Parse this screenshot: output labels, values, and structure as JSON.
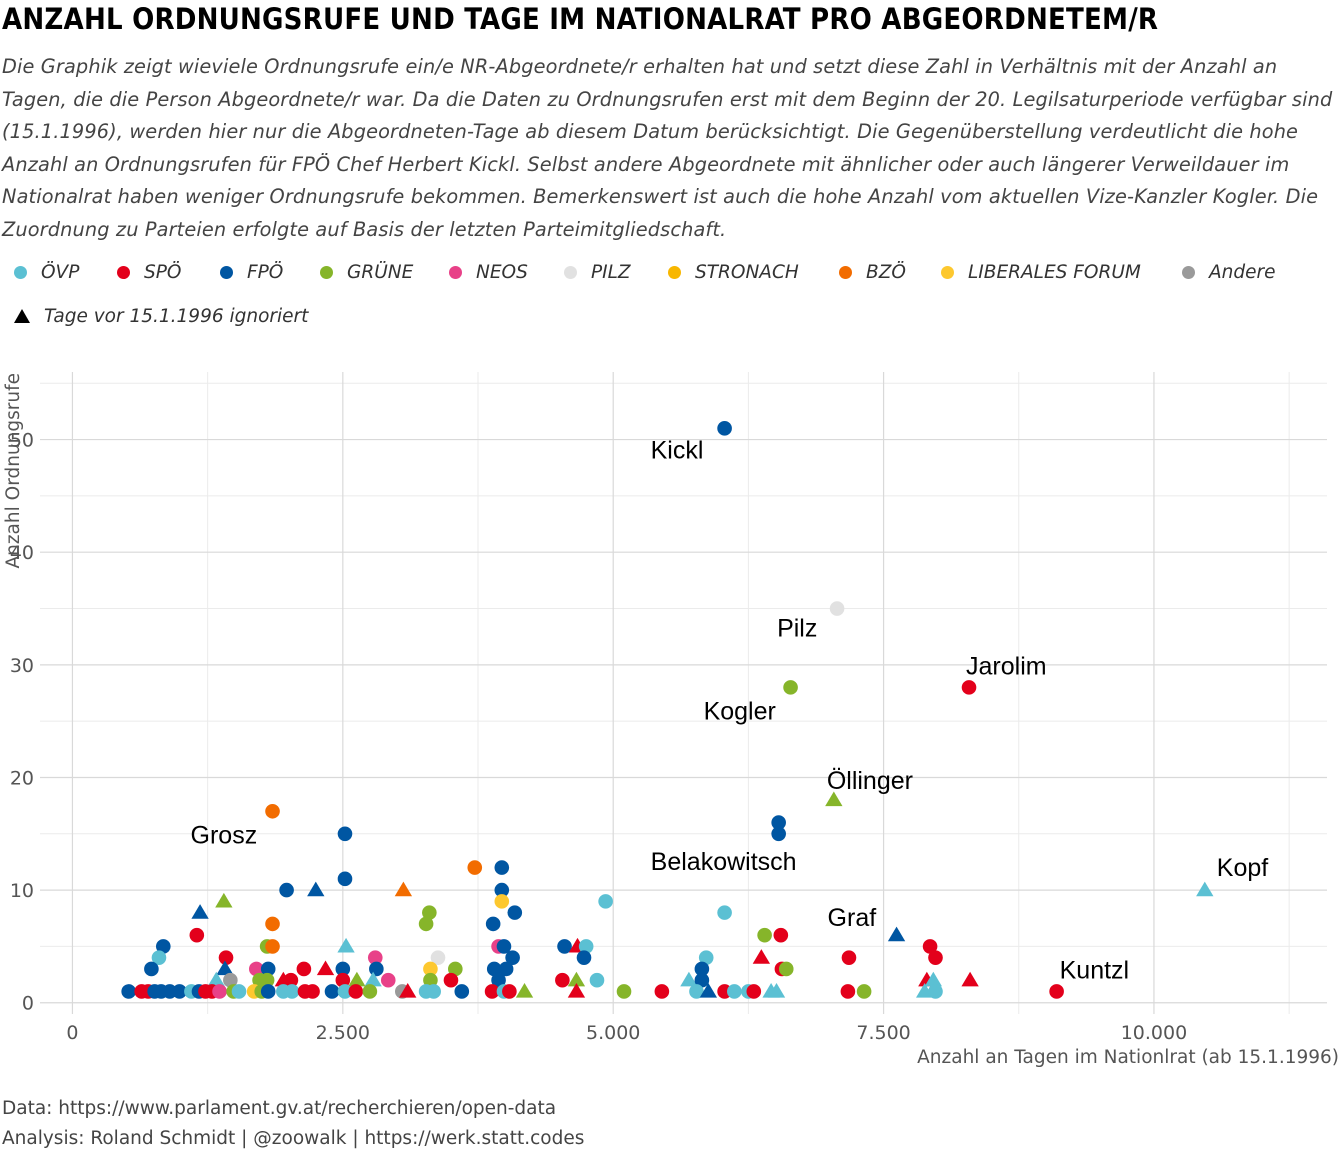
{
  "title": "ANZAHL ORDNUNGSRUFE UND TAGE IM NATIONALRAT PRO ABGEORDNETEM/R",
  "subtitle": "Die Graphik zeigt wieviele Ordnungsrufe ein/e NR-Abgeordnete/r erhalten hat und setzt diese Zahl in Verhältnis mit der Anzahl an Tagen, die die Person Abgeordnete/r war. Da die Daten zu Ordnungsrufen erst mit dem Beginn der 20. Legilsaturperiode verfügbar sind (15.1.1996), werden hier nur die Abgeordneten-Tage ab diesem Datum berücksichtigt. Die Gegenüberstellung verdeutlicht die hohe Anzahl an Ordnungsrufen für FPÖ Chef Herbert Kickl. Selbst andere Abgeordnete mit ähnlicher oder auch längerer Verweildauer im Nationalrat haben weniger Ordnungsrufe bekommen. Bemerkenswert ist auch die hohe Anzahl vom aktuellen Vize-Kanzler Kogler. Die Zuordnung zu Parteien erfolgte auf Basis der letzten Parteimitgliedschaft.",
  "caption": {
    "line1": "Data: https://www.parlament.gv.at/recherchieren/open-data",
    "line2": "Analysis: Roland Schmidt | @zoowalk | https://werk.statt.codes"
  },
  "legend": {
    "parties": [
      {
        "name": "ÖVP",
        "color": "#5bc0d3"
      },
      {
        "name": "SPÖ",
        "color": "#e3001b"
      },
      {
        "name": "FPÖ",
        "color": "#0056a2"
      },
      {
        "name": "GRÜNE",
        "color": "#86b52a"
      },
      {
        "name": "NEOS",
        "color": "#e84188"
      },
      {
        "name": "PILZ",
        "color": "#e1e1e1"
      },
      {
        "name": "STRONACH",
        "color": "#f8b700"
      },
      {
        "name": "BZÖ",
        "color": "#f26c00"
      },
      {
        "name": "LIBERALES FORUM",
        "color": "#fdc82f"
      },
      {
        "name": "Andere",
        "color": "#9a9a9a"
      }
    ],
    "triangle_label": "Tage vor 15.1.1996 ignoriert"
  },
  "chart_data": {
    "type": "scatter",
    "xlabel": "Anzahl an Tagen im Nationlrat (ab 15.1.1996)",
    "ylabel": "Anzahl Ordnungsrufe",
    "xlim": [
      -300,
      11600
    ],
    "ylim": [
      -1,
      56
    ],
    "x_ticks": [
      0,
      2500,
      5000,
      7500,
      10000
    ],
    "x_tick_labels": [
      "0",
      "2.500",
      "5.000",
      "7.500",
      "10.000"
    ],
    "y_ticks": [
      0,
      10,
      20,
      30,
      40,
      50
    ],
    "y_tick_labels": [
      "0",
      "10",
      "20",
      "30",
      "40",
      "50"
    ],
    "grid": true,
    "encoding": {
      "color": "party",
      "shape": "triangle = Tage vor 15.1.1996 ignoriert"
    },
    "points": [
      {
        "x": 6030,
        "y": 51,
        "party": "FPÖ",
        "tri": false
      },
      {
        "x": 7070,
        "y": 35,
        "party": "PILZ",
        "tri": false
      },
      {
        "x": 8290,
        "y": 28,
        "party": "SPÖ",
        "tri": false
      },
      {
        "x": 6640,
        "y": 28,
        "party": "GRÜNE",
        "tri": false
      },
      {
        "x": 7040,
        "y": 18,
        "party": "GRÜNE",
        "tri": true
      },
      {
        "x": 6530,
        "y": 16,
        "party": "FPÖ",
        "tri": false
      },
      {
        "x": 6530,
        "y": 15,
        "party": "FPÖ",
        "tri": false
      },
      {
        "x": 10470,
        "y": 10,
        "party": "ÖVP",
        "tri": true
      },
      {
        "x": 7620,
        "y": 6,
        "party": "FPÖ",
        "tri": true
      },
      {
        "x": 9100,
        "y": 1,
        "party": "SPÖ",
        "tri": false
      },
      {
        "x": 1850,
        "y": 17,
        "party": "BZÖ",
        "tri": false
      },
      {
        "x": 2520,
        "y": 15,
        "party": "FPÖ",
        "tri": false
      },
      {
        "x": 2520,
        "y": 11,
        "party": "FPÖ",
        "tri": false
      },
      {
        "x": 3970,
        "y": 12,
        "party": "FPÖ",
        "tri": false
      },
      {
        "x": 3720,
        "y": 12,
        "party": "BZÖ",
        "tri": false
      },
      {
        "x": 1980,
        "y": 10,
        "party": "FPÖ",
        "tri": false
      },
      {
        "x": 2250,
        "y": 10,
        "party": "FPÖ",
        "tri": true
      },
      {
        "x": 3060,
        "y": 10,
        "party": "BZÖ",
        "tri": true
      },
      {
        "x": 3970,
        "y": 10,
        "party": "FPÖ",
        "tri": false
      },
      {
        "x": 3970,
        "y": 9,
        "party": "LIBERALES FORUM",
        "tri": false
      },
      {
        "x": 1400,
        "y": 9,
        "party": "GRÜNE",
        "tri": true
      },
      {
        "x": 4930,
        "y": 9,
        "party": "ÖVP",
        "tri": false
      },
      {
        "x": 1180,
        "y": 8,
        "party": "FPÖ",
        "tri": true
      },
      {
        "x": 3300,
        "y": 8,
        "party": "GRÜNE",
        "tri": false
      },
      {
        "x": 4090,
        "y": 8,
        "party": "FPÖ",
        "tri": false
      },
      {
        "x": 6030,
        "y": 8,
        "party": "ÖVP",
        "tri": false
      },
      {
        "x": 1850,
        "y": 7,
        "party": "BZÖ",
        "tri": false
      },
      {
        "x": 3270,
        "y": 7,
        "party": "GRÜNE",
        "tri": false
      },
      {
        "x": 3890,
        "y": 7,
        "party": "FPÖ",
        "tri": false
      },
      {
        "x": 1150,
        "y": 6,
        "party": "SPÖ",
        "tri": false
      },
      {
        "x": 6400,
        "y": 6,
        "party": "GRÜNE",
        "tri": false
      },
      {
        "x": 6550,
        "y": 6,
        "party": "SPÖ",
        "tri": false
      },
      {
        "x": 840,
        "y": 5,
        "party": "FPÖ",
        "tri": false
      },
      {
        "x": 1800,
        "y": 5,
        "party": "GRÜNE",
        "tri": false
      },
      {
        "x": 1850,
        "y": 5,
        "party": "BZÖ",
        "tri": false
      },
      {
        "x": 2530,
        "y": 5,
        "party": "ÖVP",
        "tri": true
      },
      {
        "x": 3940,
        "y": 5,
        "party": "NEOS",
        "tri": false
      },
      {
        "x": 3990,
        "y": 5,
        "party": "FPÖ",
        "tri": false
      },
      {
        "x": 4550,
        "y": 5,
        "party": "FPÖ",
        "tri": false
      },
      {
        "x": 4670,
        "y": 5,
        "party": "SPÖ",
        "tri": true
      },
      {
        "x": 4750,
        "y": 5,
        "party": "ÖVP",
        "tri": false
      },
      {
        "x": 7930,
        "y": 5,
        "party": "SPÖ",
        "tri": false
      },
      {
        "x": 800,
        "y": 4,
        "party": "ÖVP",
        "tri": false
      },
      {
        "x": 1420,
        "y": 4,
        "party": "SPÖ",
        "tri": false
      },
      {
        "x": 2800,
        "y": 4,
        "party": "NEOS",
        "tri": false
      },
      {
        "x": 3380,
        "y": 4,
        "party": "PILZ",
        "tri": false
      },
      {
        "x": 4070,
        "y": 4,
        "party": "FPÖ",
        "tri": false
      },
      {
        "x": 4730,
        "y": 4,
        "party": "FPÖ",
        "tri": false
      },
      {
        "x": 5860,
        "y": 4,
        "party": "ÖVP",
        "tri": false
      },
      {
        "x": 6370,
        "y": 4,
        "party": "SPÖ",
        "tri": true
      },
      {
        "x": 7180,
        "y": 4,
        "party": "SPÖ",
        "tri": false
      },
      {
        "x": 7980,
        "y": 4,
        "party": "SPÖ",
        "tri": false
      },
      {
        "x": 730,
        "y": 3,
        "party": "FPÖ",
        "tri": false
      },
      {
        "x": 1410,
        "y": 3,
        "party": "FPÖ",
        "tri": true
      },
      {
        "x": 1700,
        "y": 3,
        "party": "NEOS",
        "tri": false
      },
      {
        "x": 1810,
        "y": 3,
        "party": "FPÖ",
        "tri": false
      },
      {
        "x": 2140,
        "y": 3,
        "party": "SPÖ",
        "tri": false
      },
      {
        "x": 2340,
        "y": 3,
        "party": "SPÖ",
        "tri": true
      },
      {
        "x": 2500,
        "y": 3,
        "party": "FPÖ",
        "tri": false
      },
      {
        "x": 2810,
        "y": 3,
        "party": "FPÖ",
        "tri": false
      },
      {
        "x": 3310,
        "y": 3,
        "party": "LIBERALES FORUM",
        "tri": false
      },
      {
        "x": 3540,
        "y": 3,
        "party": "GRÜNE",
        "tri": false
      },
      {
        "x": 3900,
        "y": 3,
        "party": "FPÖ",
        "tri": false
      },
      {
        "x": 4010,
        "y": 3,
        "party": "FPÖ",
        "tri": false
      },
      {
        "x": 5820,
        "y": 3,
        "party": "FPÖ",
        "tri": false
      },
      {
        "x": 6560,
        "y": 3,
        "party": "SPÖ",
        "tri": false
      },
      {
        "x": 6600,
        "y": 3,
        "party": "GRÜNE",
        "tri": false
      },
      {
        "x": 1330,
        "y": 2,
        "party": "ÖVP",
        "tri": true
      },
      {
        "x": 1460,
        "y": 2,
        "party": "Andere",
        "tri": false
      },
      {
        "x": 1730,
        "y": 2,
        "party": "GRÜNE",
        "tri": false
      },
      {
        "x": 1800,
        "y": 2,
        "party": "GRÜNE",
        "tri": false
      },
      {
        "x": 1950,
        "y": 2,
        "party": "SPÖ",
        "tri": true
      },
      {
        "x": 2020,
        "y": 2,
        "party": "SPÖ",
        "tri": false
      },
      {
        "x": 2500,
        "y": 2,
        "party": "SPÖ",
        "tri": false
      },
      {
        "x": 2630,
        "y": 2,
        "party": "GRÜNE",
        "tri": true
      },
      {
        "x": 2780,
        "y": 2,
        "party": "ÖVP",
        "tri": true
      },
      {
        "x": 2920,
        "y": 2,
        "party": "NEOS",
        "tri": false
      },
      {
        "x": 3310,
        "y": 2,
        "party": "GRÜNE",
        "tri": false
      },
      {
        "x": 3500,
        "y": 2,
        "party": "SPÖ",
        "tri": false
      },
      {
        "x": 3940,
        "y": 2,
        "party": "FPÖ",
        "tri": false
      },
      {
        "x": 4530,
        "y": 2,
        "party": "SPÖ",
        "tri": false
      },
      {
        "x": 4660,
        "y": 2,
        "party": "GRÜNE",
        "tri": true
      },
      {
        "x": 4850,
        "y": 2,
        "party": "ÖVP",
        "tri": false
      },
      {
        "x": 5700,
        "y": 2,
        "party": "ÖVP",
        "tri": true
      },
      {
        "x": 5820,
        "y": 2,
        "party": "FPÖ",
        "tri": false
      },
      {
        "x": 7900,
        "y": 2,
        "party": "SPÖ",
        "tri": true
      },
      {
        "x": 7960,
        "y": 2,
        "party": "ÖVP",
        "tri": true
      },
      {
        "x": 8300,
        "y": 2,
        "party": "SPÖ",
        "tri": true
      },
      {
        "x": 520,
        "y": 1,
        "party": "FPÖ",
        "tri": false
      },
      {
        "x": 640,
        "y": 1,
        "party": "SPÖ",
        "tri": false
      },
      {
        "x": 700,
        "y": 1,
        "party": "SPÖ",
        "tri": false
      },
      {
        "x": 760,
        "y": 1,
        "party": "FPÖ",
        "tri": false
      },
      {
        "x": 820,
        "y": 1,
        "party": "FPÖ",
        "tri": false
      },
      {
        "x": 900,
        "y": 1,
        "party": "FPÖ",
        "tri": false
      },
      {
        "x": 990,
        "y": 1,
        "party": "FPÖ",
        "tri": false
      },
      {
        "x": 1100,
        "y": 1,
        "party": "ÖVP",
        "tri": false
      },
      {
        "x": 1170,
        "y": 1,
        "party": "FPÖ",
        "tri": false
      },
      {
        "x": 1230,
        "y": 1,
        "party": "SPÖ",
        "tri": false
      },
      {
        "x": 1290,
        "y": 1,
        "party": "SPÖ",
        "tri": false
      },
      {
        "x": 1360,
        "y": 1,
        "party": "NEOS",
        "tri": false
      },
      {
        "x": 1490,
        "y": 1,
        "party": "GRÜNE",
        "tri": false
      },
      {
        "x": 1540,
        "y": 1,
        "party": "ÖVP",
        "tri": false
      },
      {
        "x": 1680,
        "y": 1,
        "party": "LIBERALES FORUM",
        "tri": false
      },
      {
        "x": 1750,
        "y": 1,
        "party": "GRÜNE",
        "tri": false
      },
      {
        "x": 1810,
        "y": 1,
        "party": "FPÖ",
        "tri": false
      },
      {
        "x": 1950,
        "y": 1,
        "party": "ÖVP",
        "tri": false
      },
      {
        "x": 2030,
        "y": 1,
        "party": "ÖVP",
        "tri": false
      },
      {
        "x": 2150,
        "y": 1,
        "party": "SPÖ",
        "tri": false
      },
      {
        "x": 2220,
        "y": 1,
        "party": "SPÖ",
        "tri": false
      },
      {
        "x": 2400,
        "y": 1,
        "party": "FPÖ",
        "tri": false
      },
      {
        "x": 2520,
        "y": 1,
        "party": "ÖVP",
        "tri": false
      },
      {
        "x": 2620,
        "y": 1,
        "party": "SPÖ",
        "tri": false
      },
      {
        "x": 2750,
        "y": 1,
        "party": "GRÜNE",
        "tri": false
      },
      {
        "x": 3050,
        "y": 1,
        "party": "Andere",
        "tri": false
      },
      {
        "x": 3100,
        "y": 1,
        "party": "SPÖ",
        "tri": true
      },
      {
        "x": 3270,
        "y": 1,
        "party": "ÖVP",
        "tri": false
      },
      {
        "x": 3340,
        "y": 1,
        "party": "ÖVP",
        "tri": false
      },
      {
        "x": 3600,
        "y": 1,
        "party": "FPÖ",
        "tri": false
      },
      {
        "x": 3880,
        "y": 1,
        "party": "SPÖ",
        "tri": false
      },
      {
        "x": 3990,
        "y": 1,
        "party": "ÖVP",
        "tri": false
      },
      {
        "x": 4040,
        "y": 1,
        "party": "SPÖ",
        "tri": false
      },
      {
        "x": 4180,
        "y": 1,
        "party": "GRÜNE",
        "tri": true
      },
      {
        "x": 4660,
        "y": 1,
        "party": "SPÖ",
        "tri": true
      },
      {
        "x": 5100,
        "y": 1,
        "party": "GRÜNE",
        "tri": false
      },
      {
        "x": 5450,
        "y": 1,
        "party": "SPÖ",
        "tri": false
      },
      {
        "x": 5770,
        "y": 1,
        "party": "ÖVP",
        "tri": false
      },
      {
        "x": 5880,
        "y": 1,
        "party": "FPÖ",
        "tri": true
      },
      {
        "x": 6030,
        "y": 1,
        "party": "SPÖ",
        "tri": false
      },
      {
        "x": 6120,
        "y": 1,
        "party": "ÖVP",
        "tri": false
      },
      {
        "x": 6250,
        "y": 1,
        "party": "ÖVP",
        "tri": false
      },
      {
        "x": 6300,
        "y": 1,
        "party": "SPÖ",
        "tri": false
      },
      {
        "x": 6460,
        "y": 1,
        "party": "ÖVP",
        "tri": true
      },
      {
        "x": 6510,
        "y": 1,
        "party": "ÖVP",
        "tri": true
      },
      {
        "x": 7170,
        "y": 1,
        "party": "SPÖ",
        "tri": false
      },
      {
        "x": 7320,
        "y": 1,
        "party": "GRÜNE",
        "tri": false
      },
      {
        "x": 7880,
        "y": 1,
        "party": "ÖVP",
        "tri": true
      },
      {
        "x": 7980,
        "y": 1,
        "party": "ÖVP",
        "tri": false
      }
    ],
    "annotations": [
      {
        "text": "Kickl",
        "x": 6030,
        "y": 51
      },
      {
        "text": "Pilz",
        "x": 7070,
        "y": 35
      },
      {
        "text": "Jarolim",
        "x": 8290,
        "y": 28
      },
      {
        "text": "Kogler",
        "x": 6640,
        "y": 28
      },
      {
        "text": "Öllinger",
        "x": 7040,
        "y": 18
      },
      {
        "text": "Belakowitsch",
        "x": 6530,
        "y": 15
      },
      {
        "text": "Grosz",
        "x": 1850,
        "y": 17
      },
      {
        "text": "Kopf",
        "x": 10470,
        "y": 10
      },
      {
        "text": "Graf",
        "x": 7620,
        "y": 6
      },
      {
        "text": "Kuntzl",
        "x": 9100,
        "y": 1
      }
    ]
  }
}
